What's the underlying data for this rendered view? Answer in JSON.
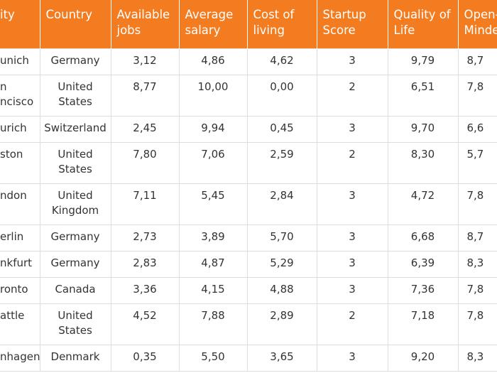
{
  "table": {
    "header": [
      "ity",
      "Country",
      "Available jobs",
      "Average salary",
      "Cost of living",
      "Startup Score",
      "Quality of Life",
      "Open-\nMinde"
    ],
    "rows": [
      [
        "unich",
        "Germany",
        "3,12",
        "4,86",
        "4,62",
        "3",
        "9,79",
        "8,7"
      ],
      [
        "n\nncisco",
        "United States",
        "8,77",
        "10,00",
        "0,00",
        "2",
        "6,51",
        "7,8"
      ],
      [
        "urich",
        "Switzerland",
        "2,45",
        "9,94",
        "0,45",
        "3",
        "9,70",
        "6,6"
      ],
      [
        "ston",
        "United States",
        "7,80",
        "7,06",
        "2,59",
        "2",
        "8,30",
        "5,7"
      ],
      [
        "ndon",
        "United Kingdom",
        "7,11",
        "5,45",
        "2,84",
        "3",
        "4,72",
        "7,8"
      ],
      [
        "erlin",
        "Germany",
        "2,73",
        "3,89",
        "5,70",
        "3",
        "6,68",
        "8,7"
      ],
      [
        "nkfurt",
        "Germany",
        "2,83",
        "4,87",
        "5,29",
        "3",
        "6,39",
        "8,3"
      ],
      [
        "ronto",
        "Canada",
        "3,36",
        "4,15",
        "4,88",
        "3",
        "7,36",
        "7,8"
      ],
      [
        "attle",
        "United States",
        "4,52",
        "7,88",
        "2,89",
        "2",
        "7,18",
        "7,8"
      ],
      [
        "nhagen",
        "Denmark",
        "0,35",
        "5,50",
        "3,65",
        "3",
        "9,20",
        "8,3"
      ]
    ]
  }
}
